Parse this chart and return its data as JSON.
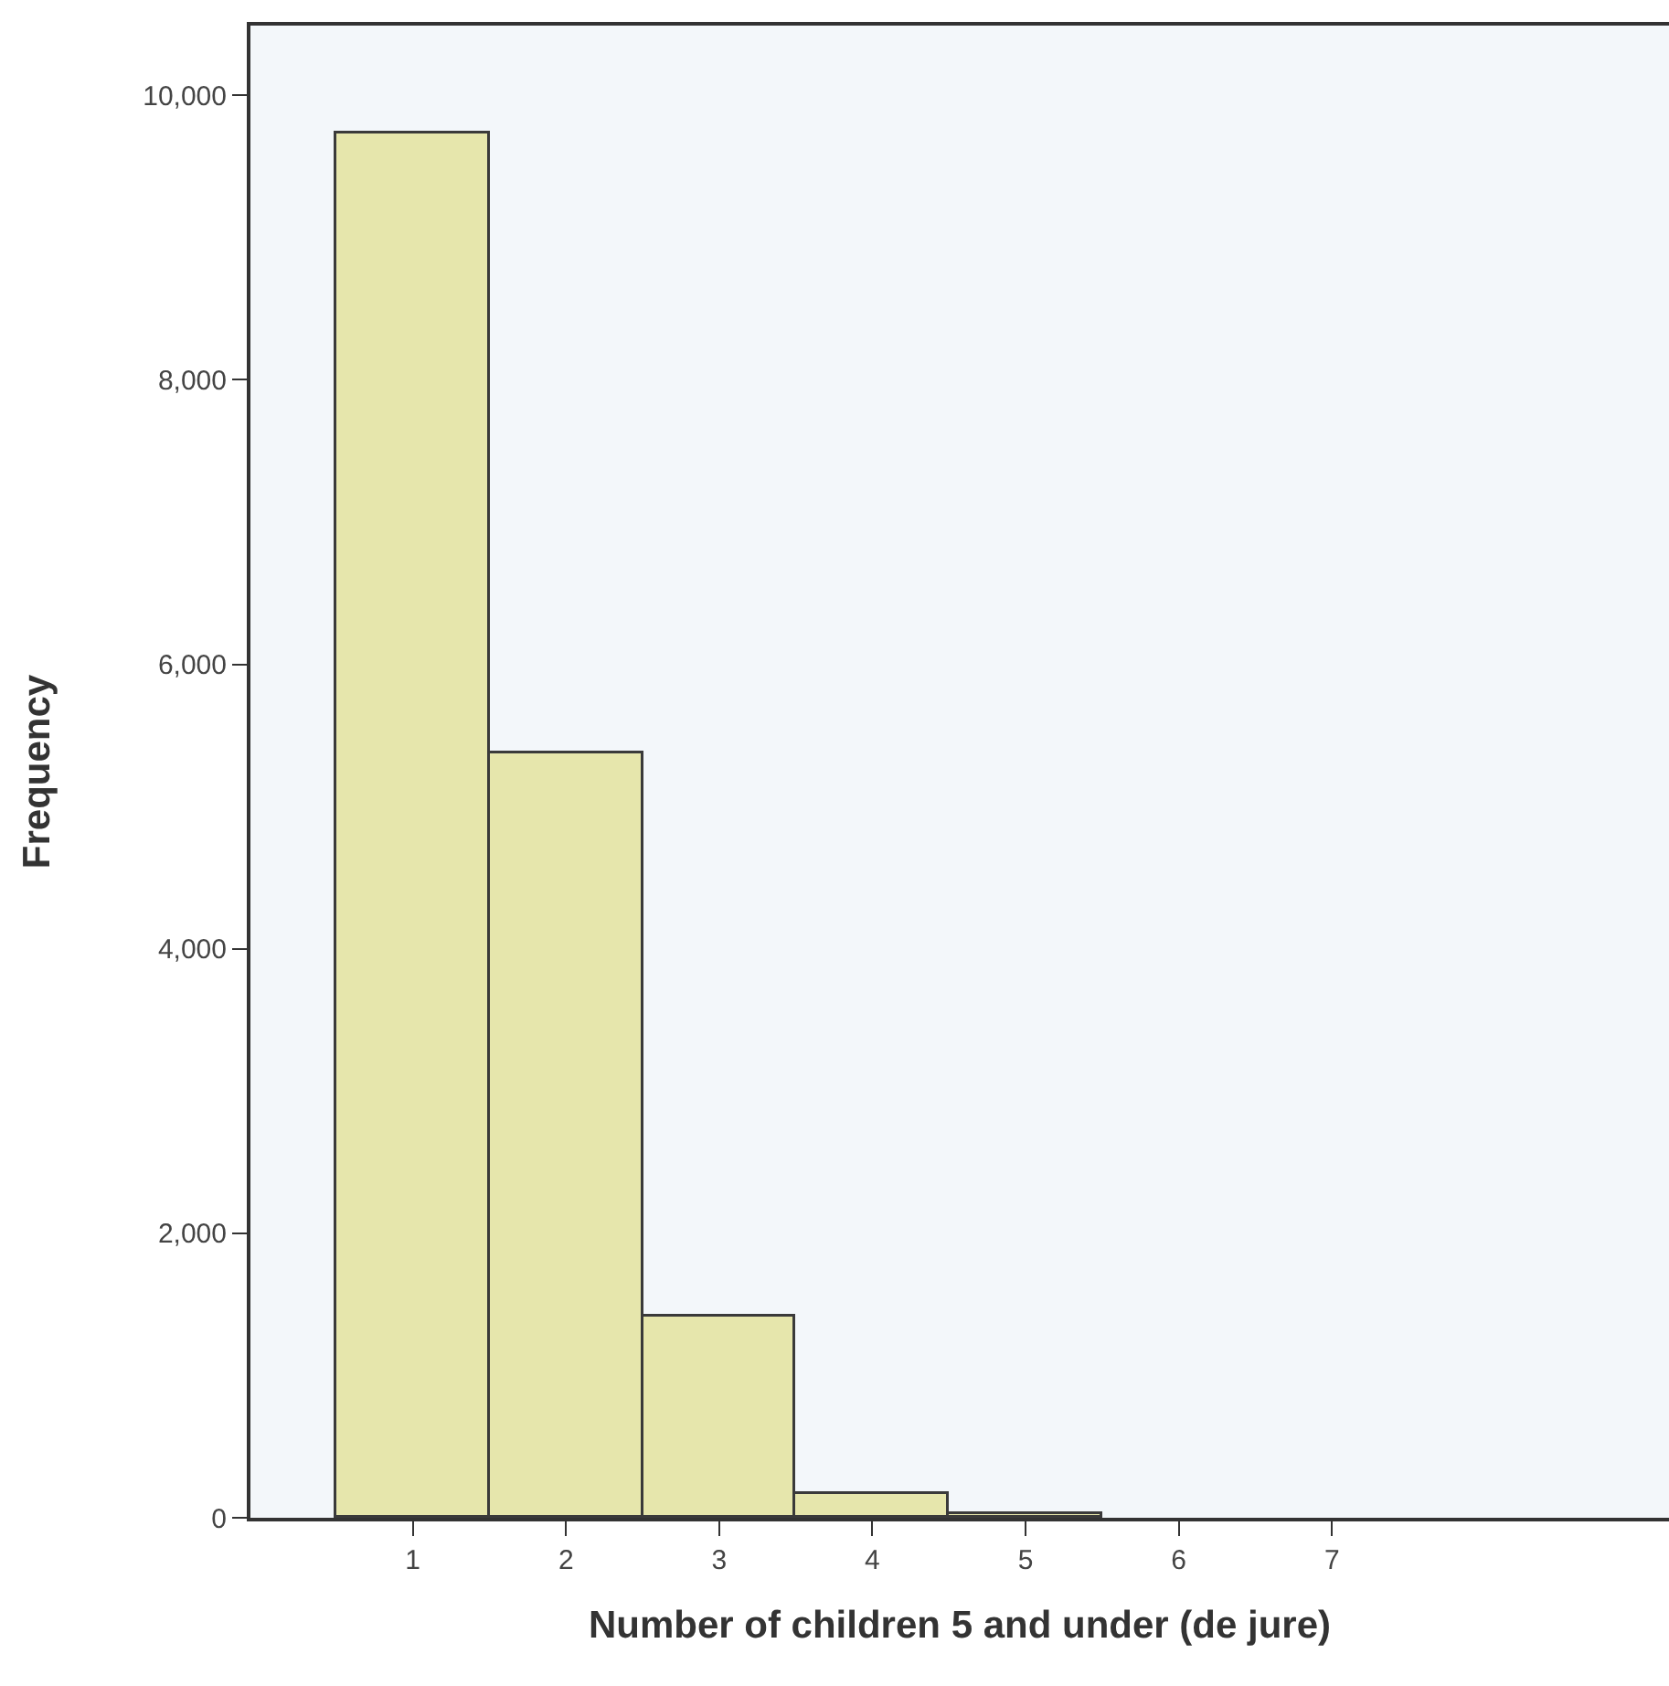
{
  "chart_data": {
    "type": "histogram",
    "xlabel": "Number of children 5 and under (de jure)",
    "ylabel": "Frequency",
    "bins": [
      0.5,
      1.5,
      2.5,
      3.5,
      4.5,
      5.5
    ],
    "values": [
      9730,
      5370,
      1410,
      170,
      30
    ],
    "color": "#e6e6ac",
    "xlim": [
      -0.06,
      9.2
    ],
    "ylim": [
      0,
      10490
    ],
    "xticks": [
      1,
      2,
      3,
      4,
      5,
      6,
      7
    ],
    "yticks": [
      {
        "value": 0,
        "label": "0"
      },
      {
        "value": 2000,
        "label": "2,000"
      },
      {
        "value": 4000,
        "label": "4,000"
      },
      {
        "value": 6000,
        "label": "6,000"
      },
      {
        "value": 8000,
        "label": "8,000"
      },
      {
        "value": 10000,
        "label": "10,000"
      }
    ]
  }
}
